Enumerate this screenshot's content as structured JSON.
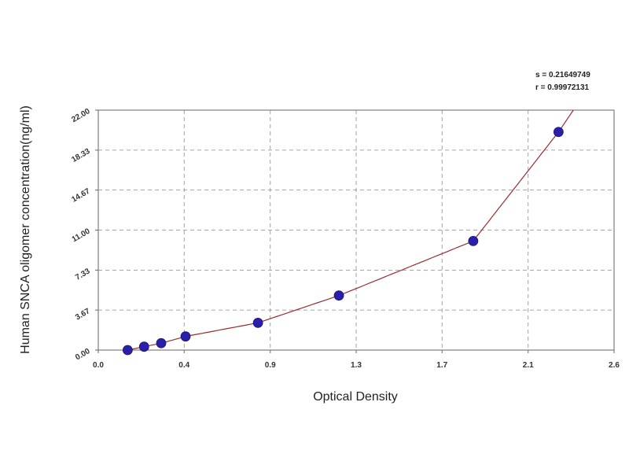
{
  "chart_data": {
    "type": "scatter",
    "title": "",
    "xlabel": "Optical Density",
    "ylabel": "Human SNCA oligomer concentration(ng/ml)",
    "xlim": [
      0.0,
      2.6
    ],
    "ylim": [
      0.0,
      22.0
    ],
    "x_ticks": [
      "0.0",
      "0.4",
      "0.9",
      "1.3",
      "1.7",
      "2.1",
      "2.6"
    ],
    "x_tick_values": [
      0.0,
      0.433,
      0.867,
      1.3,
      1.733,
      2.167,
      2.6
    ],
    "y_ticks": [
      "0.00",
      "3.67",
      "7.33",
      "11.00",
      "14.67",
      "18.33",
      "22.00"
    ],
    "y_tick_values": [
      0.0,
      3.67,
      7.33,
      11.0,
      14.67,
      18.33,
      22.0
    ],
    "grid": true,
    "stats": {
      "s": "s = 0.21649749",
      "r": "r = 0.99972131"
    },
    "series": [
      {
        "points": [
          {
            "x": 0.148,
            "y": 0.0
          },
          {
            "x": 0.231,
            "y": 0.31
          },
          {
            "x": 0.317,
            "y": 0.63
          },
          {
            "x": 0.44,
            "y": 1.25
          },
          {
            "x": 0.805,
            "y": 2.5
          },
          {
            "x": 1.213,
            "y": 5.0
          },
          {
            "x": 1.89,
            "y": 10.0
          },
          {
            "x": 2.32,
            "y": 20.0
          }
        ],
        "color": "#2a1fa8"
      }
    ],
    "curve": {
      "type": "fit",
      "color": "#9b2d2d"
    }
  }
}
